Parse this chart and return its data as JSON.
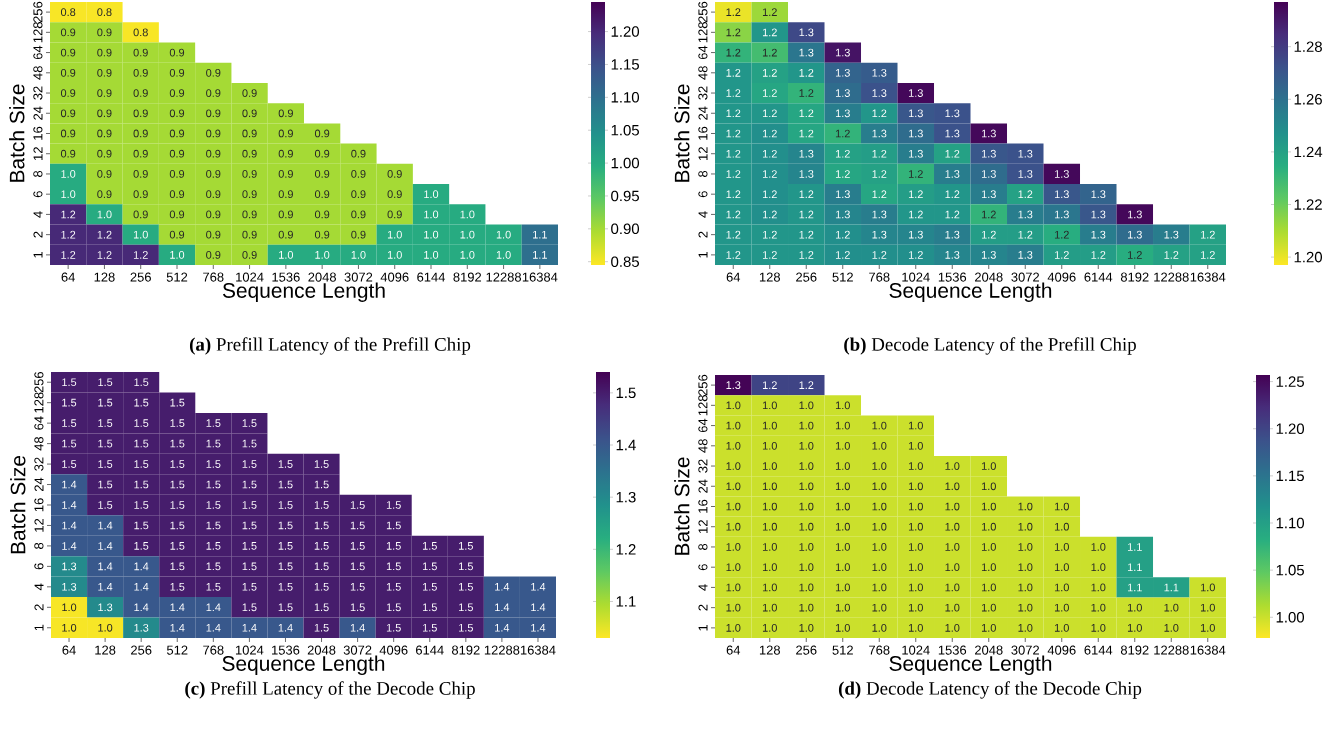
{
  "chart_data": [
    {
      "type": "heatmap",
      "title": "**(a)** Prefill Latency of the Prefill Chip",
      "xlabel": "Sequence Length",
      "ylabel": "Batch Size",
      "categories": [
        "64",
        "128",
        "256",
        "512",
        "768",
        "1024",
        "1536",
        "2048",
        "3072",
        "4096",
        "6144",
        "8192",
        "12288",
        "16384"
      ],
      "y_categories": [
        "256",
        "128",
        "64",
        "48",
        "32",
        "24",
        "16",
        "12",
        "8",
        "6",
        "4",
        "2",
        "1"
      ],
      "cells": [
        [
          0.848,
          0.848,
          null,
          null,
          null,
          null,
          null,
          null,
          null,
          null,
          null,
          null,
          null,
          null
        ],
        [
          0.9,
          0.9,
          0.848,
          null,
          null,
          null,
          null,
          null,
          null,
          null,
          null,
          null,
          null,
          null
        ],
        [
          0.9,
          0.9,
          0.9,
          0.9,
          null,
          null,
          null,
          null,
          null,
          null,
          null,
          null,
          null,
          null
        ],
        [
          0.9,
          0.9,
          0.9,
          0.9,
          0.9,
          null,
          null,
          null,
          null,
          null,
          null,
          null,
          null,
          null
        ],
        [
          0.9,
          0.9,
          0.9,
          0.9,
          0.9,
          0.9,
          null,
          null,
          null,
          null,
          null,
          null,
          null,
          null
        ],
        [
          0.9,
          0.9,
          0.9,
          0.9,
          0.9,
          0.9,
          0.9,
          null,
          null,
          null,
          null,
          null,
          null,
          null
        ],
        [
          0.9,
          0.9,
          0.9,
          0.9,
          0.9,
          0.9,
          0.9,
          0.9,
          null,
          null,
          null,
          null,
          null,
          null
        ],
        [
          0.9,
          0.9,
          0.9,
          0.9,
          0.9,
          0.9,
          0.9,
          0.9,
          0.9,
          null,
          null,
          null,
          null,
          null
        ],
        [
          1.0,
          0.9,
          0.9,
          0.9,
          0.9,
          0.9,
          0.9,
          0.9,
          0.9,
          0.9,
          null,
          null,
          null,
          null
        ],
        [
          1.0,
          0.9,
          0.9,
          0.9,
          0.9,
          0.9,
          0.9,
          0.9,
          0.9,
          0.9,
          1.0,
          null,
          null,
          null
        ],
        [
          1.2,
          1.0,
          0.9,
          0.9,
          0.9,
          0.9,
          0.9,
          0.9,
          0.9,
          0.9,
          1.0,
          1.0,
          null,
          null
        ],
        [
          1.2,
          1.2,
          1.0,
          0.9,
          0.9,
          0.9,
          0.9,
          0.9,
          0.9,
          1.0,
          1.0,
          1.0,
          1.0,
          1.1
        ],
        [
          1.2,
          1.2,
          1.2,
          1.0,
          0.9,
          0.9,
          1.0,
          1.0,
          1.0,
          1.0,
          1.0,
          1.0,
          1.0,
          1.1
        ]
      ],
      "cell_labels": [
        [
          "0.8",
          "0.8",
          null,
          null,
          null,
          null,
          null,
          null,
          null,
          null,
          null,
          null,
          null,
          null
        ],
        [
          "0.9",
          "0.9",
          "0.8",
          null,
          null,
          null,
          null,
          null,
          null,
          null,
          null,
          null,
          null,
          null
        ],
        [
          "0.9",
          "0.9",
          "0.9",
          "0.9",
          null,
          null,
          null,
          null,
          null,
          null,
          null,
          null,
          null,
          null
        ],
        [
          "0.9",
          "0.9",
          "0.9",
          "0.9",
          "0.9",
          null,
          null,
          null,
          null,
          null,
          null,
          null,
          null,
          null
        ],
        [
          "0.9",
          "0.9",
          "0.9",
          "0.9",
          "0.9",
          "0.9",
          null,
          null,
          null,
          null,
          null,
          null,
          null,
          null
        ],
        [
          "0.9",
          "0.9",
          "0.9",
          "0.9",
          "0.9",
          "0.9",
          "0.9",
          null,
          null,
          null,
          null,
          null,
          null,
          null
        ],
        [
          "0.9",
          "0.9",
          "0.9",
          "0.9",
          "0.9",
          "0.9",
          "0.9",
          "0.9",
          null,
          null,
          null,
          null,
          null,
          null
        ],
        [
          "0.9",
          "0.9",
          "0.9",
          "0.9",
          "0.9",
          "0.9",
          "0.9",
          "0.9",
          "0.9",
          null,
          null,
          null,
          null,
          null
        ],
        [
          "1.0",
          "0.9",
          "0.9",
          "0.9",
          "0.9",
          "0.9",
          "0.9",
          "0.9",
          "0.9",
          "0.9",
          null,
          null,
          null,
          null
        ],
        [
          "1.0",
          "0.9",
          "0.9",
          "0.9",
          "0.9",
          "0.9",
          "0.9",
          "0.9",
          "0.9",
          "0.9",
          "1.0",
          null,
          null,
          null
        ],
        [
          "1.2",
          "1.0",
          "0.9",
          "0.9",
          "0.9",
          "0.9",
          "0.9",
          "0.9",
          "0.9",
          "0.9",
          "1.0",
          "1.0",
          null,
          null
        ],
        [
          "1.2",
          "1.2",
          "1.0",
          "0.9",
          "0.9",
          "0.9",
          "0.9",
          "0.9",
          "0.9",
          "1.0",
          "1.0",
          "1.0",
          "1.0",
          "1.1"
        ],
        [
          "1.2",
          "1.2",
          "1.2",
          "1.0",
          "0.9",
          "0.9",
          "1.0",
          "1.0",
          "1.0",
          "1.0",
          "1.0",
          "1.0",
          "1.0",
          "1.1"
        ]
      ],
      "clim": [
        0.845,
        1.245
      ],
      "cticks": [
        {
          "value": 0.85,
          "label": "0.85"
        },
        {
          "value": 0.9,
          "label": "0.90"
        },
        {
          "value": 0.95,
          "label": "0.95"
        },
        {
          "value": 1.0,
          "label": "1.00"
        },
        {
          "value": 1.05,
          "label": "1.05"
        },
        {
          "value": 1.1,
          "label": "1.10"
        },
        {
          "value": 1.15,
          "label": "1.15"
        },
        {
          "value": 1.2,
          "label": "1.20"
        }
      ]
    },
    {
      "type": "heatmap",
      "title": "**(b)** Decode Latency of the Prefill Chip",
      "xlabel": "Sequence Length",
      "ylabel": "Batch Size",
      "categories": [
        "64",
        "128",
        "256",
        "512",
        "768",
        "1024",
        "1536",
        "2048",
        "3072",
        "4096",
        "6144",
        "8192",
        "12288",
        "16384"
      ],
      "y_categories": [
        "256",
        "128",
        "64",
        "48",
        "32",
        "24",
        "16",
        "12",
        "8",
        "6",
        "4",
        "2",
        "1"
      ],
      "cells": [
        [
          1.2,
          1.212,
          null,
          null,
          null,
          null,
          null,
          null,
          null,
          null,
          null,
          null,
          null,
          null
        ],
        [
          1.215,
          1.245,
          1.275,
          null,
          null,
          null,
          null,
          null,
          null,
          null,
          null,
          null,
          null,
          null
        ],
        [
          1.232,
          1.228,
          1.258,
          1.292,
          null,
          null,
          null,
          null,
          null,
          null,
          null,
          null,
          null,
          null
        ],
        [
          1.245,
          1.24,
          1.245,
          1.265,
          1.268,
          null,
          null,
          null,
          null,
          null,
          null,
          null,
          null,
          null
        ],
        [
          1.245,
          1.238,
          1.232,
          1.262,
          1.272,
          1.295,
          null,
          null,
          null,
          null,
          null,
          null,
          null,
          null
        ],
        [
          1.245,
          1.245,
          1.238,
          1.255,
          1.245,
          1.27,
          1.272,
          null,
          null,
          null,
          null,
          null,
          null,
          null
        ],
        [
          1.245,
          1.248,
          1.238,
          1.232,
          1.255,
          1.262,
          1.272,
          1.295,
          null,
          null,
          null,
          null,
          null,
          null
        ],
        [
          1.245,
          1.248,
          1.252,
          1.24,
          1.242,
          1.255,
          1.24,
          1.27,
          1.272,
          null,
          null,
          null,
          null,
          null
        ],
        [
          1.245,
          1.248,
          1.252,
          1.238,
          1.24,
          1.232,
          1.255,
          1.262,
          1.272,
          1.295,
          null,
          null,
          null,
          null
        ],
        [
          1.245,
          1.248,
          1.245,
          1.255,
          1.238,
          1.242,
          1.245,
          1.255,
          1.24,
          1.27,
          1.265,
          null,
          null,
          null
        ],
        [
          1.245,
          1.248,
          1.245,
          1.252,
          1.255,
          1.245,
          1.245,
          1.232,
          1.255,
          1.258,
          1.27,
          1.295,
          null,
          null
        ],
        [
          1.245,
          1.245,
          1.245,
          1.248,
          1.252,
          1.252,
          1.255,
          1.242,
          1.242,
          1.235,
          1.255,
          1.262,
          1.255,
          1.24
        ],
        [
          1.245,
          1.245,
          1.245,
          1.248,
          1.248,
          1.248,
          1.252,
          1.252,
          1.255,
          1.242,
          1.242,
          1.235,
          1.24,
          1.24
        ]
      ],
      "cell_labels": [
        [
          "1.2",
          "1.2",
          null,
          null,
          null,
          null,
          null,
          null,
          null,
          null,
          null,
          null,
          null,
          null
        ],
        [
          "1.2",
          "1.2",
          "1.3",
          null,
          null,
          null,
          null,
          null,
          null,
          null,
          null,
          null,
          null,
          null
        ],
        [
          "1.2",
          "1.2",
          "1.3",
          "1.3",
          null,
          null,
          null,
          null,
          null,
          null,
          null,
          null,
          null,
          null
        ],
        [
          "1.2",
          "1.2",
          "1.2",
          "1.3",
          "1.3",
          null,
          null,
          null,
          null,
          null,
          null,
          null,
          null,
          null
        ],
        [
          "1.2",
          "1.2",
          "1.2",
          "1.3",
          "1.3",
          "1.3",
          null,
          null,
          null,
          null,
          null,
          null,
          null,
          null
        ],
        [
          "1.2",
          "1.2",
          "1.2",
          "1.3",
          "1.2",
          "1.3",
          "1.3",
          null,
          null,
          null,
          null,
          null,
          null,
          null
        ],
        [
          "1.2",
          "1.2",
          "1.2",
          "1.2",
          "1.3",
          "1.3",
          "1.3",
          "1.3",
          null,
          null,
          null,
          null,
          null,
          null
        ],
        [
          "1.2",
          "1.2",
          "1.3",
          "1.2",
          "1.2",
          "1.3",
          "1.2",
          "1.3",
          "1.3",
          null,
          null,
          null,
          null,
          null
        ],
        [
          "1.2",
          "1.2",
          "1.3",
          "1.2",
          "1.2",
          "1.2",
          "1.3",
          "1.3",
          "1.3",
          "1.3",
          null,
          null,
          null,
          null
        ],
        [
          "1.2",
          "1.2",
          "1.2",
          "1.3",
          "1.2",
          "1.2",
          "1.2",
          "1.3",
          "1.2",
          "1.3",
          "1.3",
          null,
          null,
          null
        ],
        [
          "1.2",
          "1.2",
          "1.2",
          "1.3",
          "1.3",
          "1.2",
          "1.2",
          "1.2",
          "1.3",
          "1.3",
          "1.3",
          "1.3",
          null,
          null
        ],
        [
          "1.2",
          "1.2",
          "1.2",
          "1.2",
          "1.3",
          "1.3",
          "1.3",
          "1.2",
          "1.2",
          "1.2",
          "1.3",
          "1.3",
          "1.3",
          "1.2"
        ],
        [
          "1.2",
          "1.2",
          "1.2",
          "1.2",
          "1.2",
          "1.2",
          "1.3",
          "1.3",
          "1.3",
          "1.2",
          "1.2",
          "1.2",
          "1.2",
          "1.2"
        ]
      ],
      "clim": [
        1.197,
        1.297
      ],
      "cticks": [
        {
          "value": 1.2,
          "label": "1.20"
        },
        {
          "value": 1.22,
          "label": "1.22"
        },
        {
          "value": 1.24,
          "label": "1.24"
        },
        {
          "value": 1.26,
          "label": "1.26"
        },
        {
          "value": 1.28,
          "label": "1.28"
        }
      ]
    },
    {
      "type": "heatmap",
      "title": "**(c)** Prefill Latency of the Decode Chip",
      "xlabel": "Sequence Length",
      "ylabel": "Batch Size",
      "categories": [
        "64",
        "128",
        "256",
        "512",
        "768",
        "1024",
        "1536",
        "2048",
        "3072",
        "4096",
        "6144",
        "8192",
        "12288",
        "16384"
      ],
      "y_categories": [
        "256",
        "128",
        "64",
        "48",
        "32",
        "24",
        "16",
        "12",
        "8",
        "6",
        "4",
        "2",
        "1"
      ],
      "cells": [
        [
          1.5,
          1.5,
          1.5,
          null,
          null,
          null,
          null,
          null,
          null,
          null,
          null,
          null,
          null,
          null
        ],
        [
          1.5,
          1.5,
          1.5,
          1.5,
          null,
          null,
          null,
          null,
          null,
          null,
          null,
          null,
          null,
          null
        ],
        [
          1.5,
          1.5,
          1.5,
          1.5,
          1.5,
          1.5,
          null,
          null,
          null,
          null,
          null,
          null,
          null,
          null
        ],
        [
          1.5,
          1.5,
          1.5,
          1.5,
          1.5,
          1.5,
          null,
          null,
          null,
          null,
          null,
          null,
          null,
          null
        ],
        [
          1.5,
          1.5,
          1.5,
          1.5,
          1.5,
          1.5,
          1.5,
          1.5,
          null,
          null,
          null,
          null,
          null,
          null
        ],
        [
          1.4,
          1.5,
          1.5,
          1.5,
          1.5,
          1.5,
          1.5,
          1.5,
          null,
          null,
          null,
          null,
          null,
          null
        ],
        [
          1.4,
          1.5,
          1.5,
          1.5,
          1.5,
          1.5,
          1.5,
          1.5,
          1.5,
          1.5,
          null,
          null,
          null,
          null
        ],
        [
          1.4,
          1.4,
          1.5,
          1.5,
          1.5,
          1.5,
          1.5,
          1.5,
          1.5,
          1.5,
          null,
          null,
          null,
          null
        ],
        [
          1.4,
          1.4,
          1.5,
          1.5,
          1.5,
          1.5,
          1.5,
          1.5,
          1.5,
          1.5,
          1.5,
          1.5,
          null,
          null
        ],
        [
          1.3,
          1.4,
          1.4,
          1.5,
          1.5,
          1.5,
          1.5,
          1.5,
          1.5,
          1.5,
          1.5,
          1.5,
          null,
          null
        ],
        [
          1.3,
          1.4,
          1.4,
          1.5,
          1.5,
          1.5,
          1.5,
          1.5,
          1.5,
          1.5,
          1.5,
          1.5,
          1.4,
          1.4
        ],
        [
          1.035,
          1.3,
          1.4,
          1.4,
          1.4,
          1.5,
          1.5,
          1.5,
          1.5,
          1.5,
          1.5,
          1.5,
          1.4,
          1.4
        ],
        [
          1.035,
          1.035,
          1.3,
          1.4,
          1.4,
          1.4,
          1.4,
          1.5,
          1.4,
          1.5,
          1.5,
          1.5,
          1.4,
          1.4
        ]
      ],
      "cell_labels": [
        [
          "1.5",
          "1.5",
          "1.5",
          null,
          null,
          null,
          null,
          null,
          null,
          null,
          null,
          null,
          null,
          null
        ],
        [
          "1.5",
          "1.5",
          "1.5",
          "1.5",
          null,
          null,
          null,
          null,
          null,
          null,
          null,
          null,
          null,
          null
        ],
        [
          "1.5",
          "1.5",
          "1.5",
          "1.5",
          "1.5",
          "1.5",
          null,
          null,
          null,
          null,
          null,
          null,
          null,
          null
        ],
        [
          "1.5",
          "1.5",
          "1.5",
          "1.5",
          "1.5",
          "1.5",
          null,
          null,
          null,
          null,
          null,
          null,
          null,
          null
        ],
        [
          "1.5",
          "1.5",
          "1.5",
          "1.5",
          "1.5",
          "1.5",
          "1.5",
          "1.5",
          null,
          null,
          null,
          null,
          null,
          null
        ],
        [
          "1.4",
          "1.5",
          "1.5",
          "1.5",
          "1.5",
          "1.5",
          "1.5",
          "1.5",
          null,
          null,
          null,
          null,
          null,
          null
        ],
        [
          "1.4",
          "1.5",
          "1.5",
          "1.5",
          "1.5",
          "1.5",
          "1.5",
          "1.5",
          "1.5",
          "1.5",
          null,
          null,
          null,
          null
        ],
        [
          "1.4",
          "1.4",
          "1.5",
          "1.5",
          "1.5",
          "1.5",
          "1.5",
          "1.5",
          "1.5",
          "1.5",
          null,
          null,
          null,
          null
        ],
        [
          "1.4",
          "1.4",
          "1.5",
          "1.5",
          "1.5",
          "1.5",
          "1.5",
          "1.5",
          "1.5",
          "1.5",
          "1.5",
          "1.5",
          null,
          null
        ],
        [
          "1.3",
          "1.4",
          "1.4",
          "1.5",
          "1.5",
          "1.5",
          "1.5",
          "1.5",
          "1.5",
          "1.5",
          "1.5",
          "1.5",
          null,
          null
        ],
        [
          "1.3",
          "1.4",
          "1.4",
          "1.5",
          "1.5",
          "1.5",
          "1.5",
          "1.5",
          "1.5",
          "1.5",
          "1.5",
          "1.5",
          "1.4",
          "1.4"
        ],
        [
          "1.0",
          "1.3",
          "1.4",
          "1.4",
          "1.4",
          "1.5",
          "1.5",
          "1.5",
          "1.5",
          "1.5",
          "1.5",
          "1.5",
          "1.4",
          "1.4"
        ],
        [
          "1.0",
          "1.0",
          "1.3",
          "1.4",
          "1.4",
          "1.4",
          "1.4",
          "1.5",
          "1.4",
          "1.5",
          "1.5",
          "1.5",
          "1.4",
          "1.4"
        ]
      ],
      "clim": [
        1.03,
        1.54
      ],
      "cticks": [
        1.1,
        1.2,
        1.3,
        1.4,
        1.5
      ]
    },
    {
      "type": "heatmap",
      "title": "**(d)** Decode Latency of the Decode Chip",
      "xlabel": "Sequence Length",
      "ylabel": "Batch Size",
      "categories": [
        "64",
        "128",
        "256",
        "512",
        "768",
        "1024",
        "1536",
        "2048",
        "3072",
        "4096",
        "6144",
        "8192",
        "12288",
        "16384"
      ],
      "y_categories": [
        "256",
        "128",
        "64",
        "48",
        "32",
        "24",
        "16",
        "12",
        "8",
        "6",
        "4",
        "2",
        "1"
      ],
      "cells": [
        [
          1.255,
          1.2,
          1.2,
          null,
          null,
          null,
          null,
          null,
          null,
          null,
          null,
          null,
          null,
          null
        ],
        [
          1.0,
          1.0,
          1.0,
          1.0,
          null,
          null,
          null,
          null,
          null,
          null,
          null,
          null,
          null,
          null
        ],
        [
          1.0,
          1.0,
          1.0,
          1.0,
          1.0,
          1.0,
          null,
          null,
          null,
          null,
          null,
          null,
          null,
          null
        ],
        [
          1.0,
          1.0,
          1.0,
          1.0,
          1.0,
          1.0,
          null,
          null,
          null,
          null,
          null,
          null,
          null,
          null
        ],
        [
          1.0,
          1.0,
          1.0,
          1.0,
          1.0,
          1.0,
          1.0,
          1.0,
          null,
          null,
          null,
          null,
          null,
          null
        ],
        [
          1.0,
          1.0,
          1.0,
          1.0,
          1.0,
          1.0,
          1.0,
          1.0,
          null,
          null,
          null,
          null,
          null,
          null
        ],
        [
          1.0,
          1.0,
          1.0,
          1.0,
          1.0,
          1.0,
          1.0,
          1.0,
          1.0,
          1.0,
          null,
          null,
          null,
          null
        ],
        [
          1.0,
          1.0,
          1.0,
          1.0,
          1.0,
          1.0,
          1.0,
          1.0,
          1.0,
          1.0,
          null,
          null,
          null,
          null
        ],
        [
          1.0,
          1.0,
          1.0,
          1.0,
          1.0,
          1.0,
          1.0,
          1.0,
          1.0,
          1.0,
          1.0,
          1.1,
          null,
          null
        ],
        [
          1.0,
          1.0,
          1.0,
          1.0,
          1.0,
          1.0,
          1.0,
          1.0,
          1.0,
          1.0,
          1.0,
          1.1,
          null,
          null
        ],
        [
          1.0,
          1.0,
          1.0,
          1.0,
          1.0,
          1.0,
          1.0,
          1.0,
          1.0,
          1.0,
          1.0,
          1.1,
          1.1,
          1.0
        ],
        [
          1.0,
          1.0,
          1.0,
          1.0,
          1.0,
          1.0,
          1.0,
          1.0,
          1.0,
          1.0,
          1.0,
          1.0,
          1.0,
          1.0
        ],
        [
          1.0,
          1.0,
          1.0,
          1.0,
          1.0,
          1.0,
          1.0,
          1.0,
          1.0,
          1.0,
          1.0,
          1.0,
          1.0,
          1.0
        ]
      ],
      "cell_labels": [
        [
          "1.3",
          "1.2",
          "1.2",
          null,
          null,
          null,
          null,
          null,
          null,
          null,
          null,
          null,
          null,
          null
        ],
        [
          "1.0",
          "1.0",
          "1.0",
          "1.0",
          null,
          null,
          null,
          null,
          null,
          null,
          null,
          null,
          null,
          null
        ],
        [
          "1.0",
          "1.0",
          "1.0",
          "1.0",
          "1.0",
          "1.0",
          null,
          null,
          null,
          null,
          null,
          null,
          null,
          null
        ],
        [
          "1.0",
          "1.0",
          "1.0",
          "1.0",
          "1.0",
          "1.0",
          null,
          null,
          null,
          null,
          null,
          null,
          null,
          null
        ],
        [
          "1.0",
          "1.0",
          "1.0",
          "1.0",
          "1.0",
          "1.0",
          "1.0",
          "1.0",
          null,
          null,
          null,
          null,
          null,
          null
        ],
        [
          "1.0",
          "1.0",
          "1.0",
          "1.0",
          "1.0",
          "1.0",
          "1.0",
          "1.0",
          null,
          null,
          null,
          null,
          null,
          null
        ],
        [
          "1.0",
          "1.0",
          "1.0",
          "1.0",
          "1.0",
          "1.0",
          "1.0",
          "1.0",
          "1.0",
          "1.0",
          null,
          null,
          null,
          null
        ],
        [
          "1.0",
          "1.0",
          "1.0",
          "1.0",
          "1.0",
          "1.0",
          "1.0",
          "1.0",
          "1.0",
          "1.0",
          null,
          null,
          null,
          null
        ],
        [
          "1.0",
          "1.0",
          "1.0",
          "1.0",
          "1.0",
          "1.0",
          "1.0",
          "1.0",
          "1.0",
          "1.0",
          "1.0",
          "1.1",
          null,
          null
        ],
        [
          "1.0",
          "1.0",
          "1.0",
          "1.0",
          "1.0",
          "1.0",
          "1.0",
          "1.0",
          "1.0",
          "1.0",
          "1.0",
          "1.1",
          null,
          null
        ],
        [
          "1.0",
          "1.0",
          "1.0",
          "1.0",
          "1.0",
          "1.0",
          "1.0",
          "1.0",
          "1.0",
          "1.0",
          "1.0",
          "1.1",
          "1.1",
          "1.0"
        ],
        [
          "1.0",
          "1.0",
          "1.0",
          "1.0",
          "1.0",
          "1.0",
          "1.0",
          "1.0",
          "1.0",
          "1.0",
          "1.0",
          "1.0",
          "1.0",
          "1.0"
        ],
        [
          "1.0",
          "1.0",
          "1.0",
          "1.0",
          "1.0",
          "1.0",
          "1.0",
          "1.0",
          "1.0",
          "1.0",
          "1.0",
          "1.0",
          "1.0",
          "1.0"
        ]
      ],
      "clim": [
        0.978,
        1.257
      ],
      "cticks": [
        {
          "value": 1.0,
          "label": "1.00"
        },
        {
          "value": 1.05,
          "label": "1.05"
        },
        {
          "value": 1.1,
          "label": "1.10"
        },
        {
          "value": 1.15,
          "label": "1.15"
        },
        {
          "value": 1.2,
          "label": "1.20"
        },
        {
          "value": 1.25,
          "label": "1.25"
        }
      ]
    }
  ]
}
